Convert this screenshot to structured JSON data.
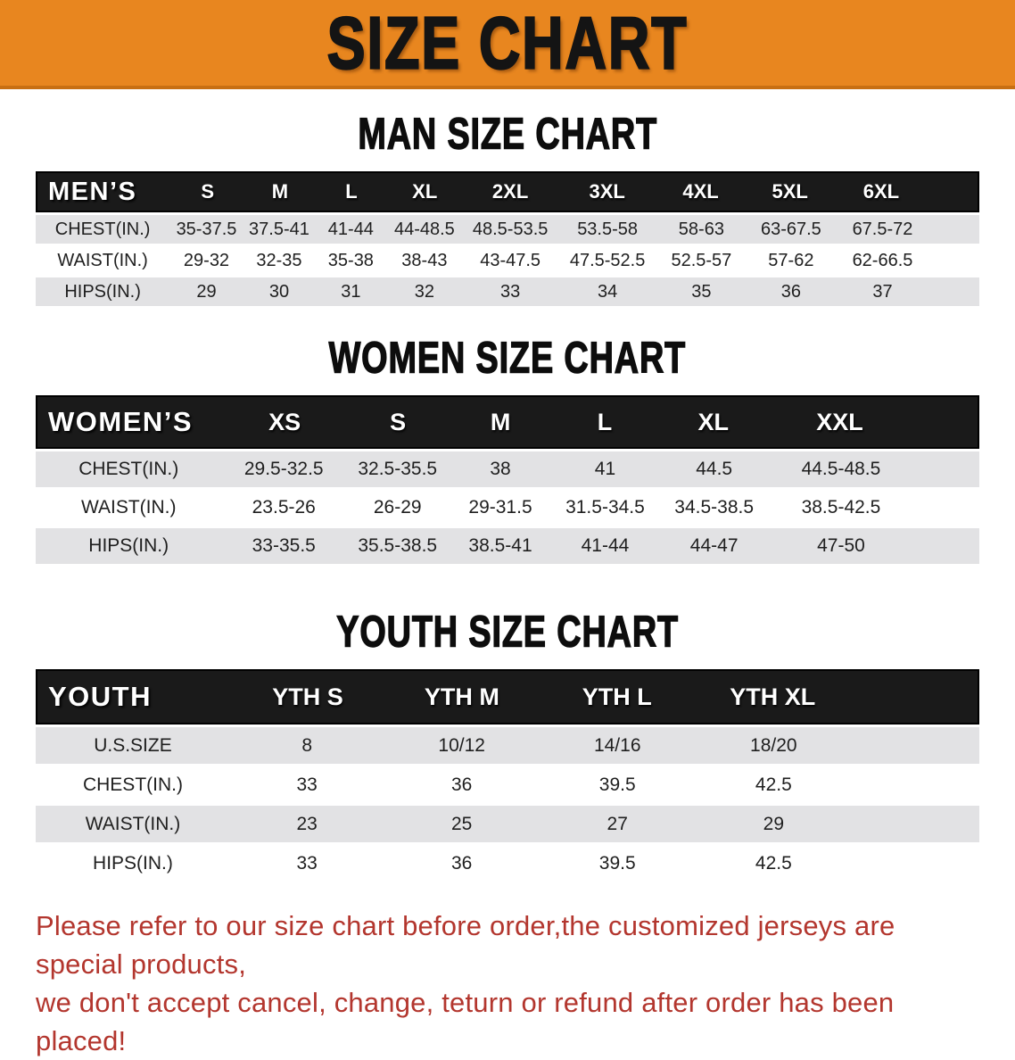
{
  "banner": {
    "title": "SIZE CHART"
  },
  "sections": [
    {
      "heading": "MAN SIZE CHART",
      "table": {
        "header_label": "MEN’S",
        "sizes": [
          "S",
          "M",
          "L",
          "XL",
          "2XL",
          "3XL",
          "4XL",
          "5XL",
          "6XL"
        ],
        "rows": [
          {
            "label": "CHEST(IN.)",
            "values": [
              "35-37.5",
              "37.5-41",
              "41-44",
              "44-48.5",
              "48.5-53.5",
              "53.5-58",
              "58-63",
              "63-67.5",
              "67.5-72"
            ]
          },
          {
            "label": "WAIST(IN.)",
            "values": [
              "29-32",
              "32-35",
              "35-38",
              "38-43",
              "43-47.5",
              "47.5-52.5",
              "52.5-57",
              "57-62",
              "62-66.5"
            ]
          },
          {
            "label": "HIPS(IN.)",
            "values": [
              "29",
              "30",
              "31",
              "32",
              "33",
              "34",
              "35",
              "36",
              "37"
            ]
          }
        ]
      }
    },
    {
      "heading": "WOMEN SIZE CHART",
      "table": {
        "header_label": "WOMEN’S",
        "sizes": [
          "XS",
          "S",
          "M",
          "L",
          "XL",
          "XXL"
        ],
        "rows": [
          {
            "label": "CHEST(IN.)",
            "values": [
              "29.5-32.5",
              "32.5-35.5",
              "38",
              "41",
              "44.5",
              "44.5-48.5"
            ]
          },
          {
            "label": "WAIST(IN.)",
            "values": [
              "23.5-26",
              "26-29",
              "29-31.5",
              "31.5-34.5",
              "34.5-38.5",
              "38.5-42.5"
            ]
          },
          {
            "label": "HIPS(IN.)",
            "values": [
              "33-35.5",
              "35.5-38.5",
              "38.5-41",
              "41-44",
              "44-47",
              "47-50"
            ]
          }
        ]
      }
    },
    {
      "heading": "YOUTH SIZE CHART",
      "table": {
        "header_label": "YOUTH",
        "sizes": [
          "YTH S",
          "YTH M",
          "YTH L",
          "YTH XL"
        ],
        "rows": [
          {
            "label": "U.S.SIZE",
            "values": [
              "8",
              "10/12",
              "14/16",
              "18/20"
            ]
          },
          {
            "label": "CHEST(IN.)",
            "values": [
              "33",
              "36",
              "39.5",
              "42.5"
            ]
          },
          {
            "label": "WAIST(IN.)",
            "values": [
              "23",
              "25",
              "27",
              "29"
            ]
          },
          {
            "label": "HIPS(IN.)",
            "values": [
              "33",
              "36",
              "39.5",
              "42.5"
            ]
          }
        ]
      }
    }
  ],
  "footer": {
    "line1": "Please refer to our size chart before order,the customized jerseys are special products,",
    "line2": "we don't accept cancel, change, teturn or refund after order has been placed!"
  },
  "colors": {
    "banner_orange": "#E8861F",
    "header_black": "#1A1A1A",
    "row_gray": "#E2E2E4",
    "footer_red": "#B3362E"
  }
}
